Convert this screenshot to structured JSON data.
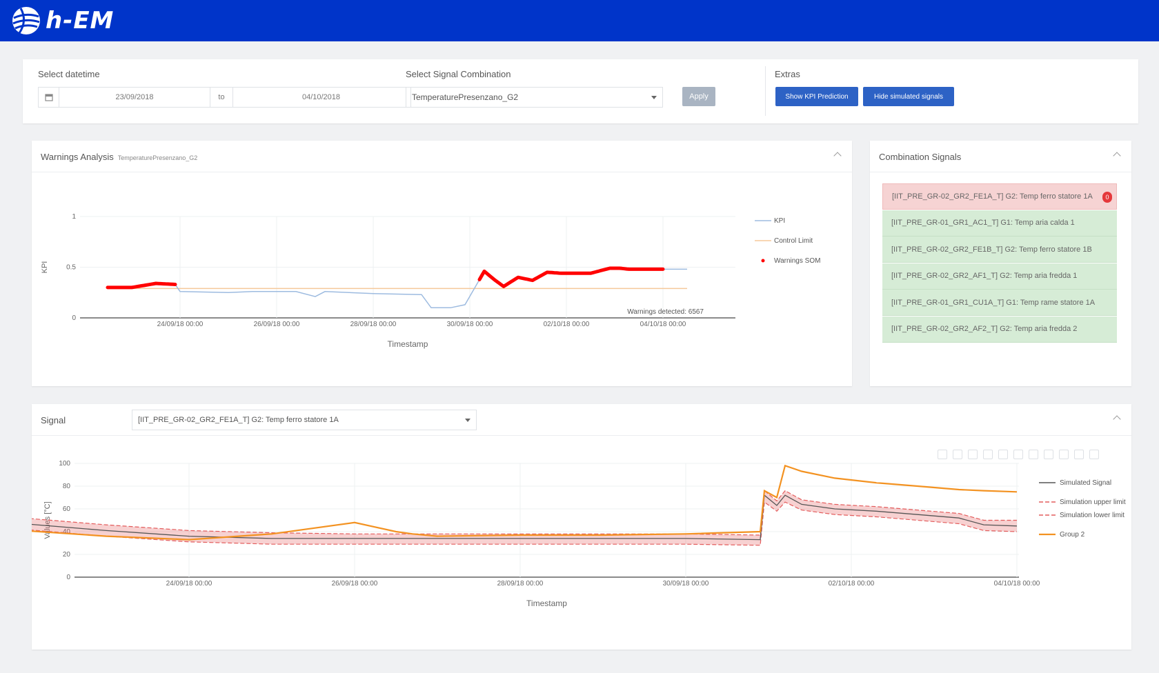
{
  "app": {
    "brand": "h-EM"
  },
  "filters": {
    "datetime_label": "Select datetime",
    "date_from": "23/09/2018",
    "date_to_label": "to",
    "date_to": "04/10/2018",
    "signal_combination_label": "Select Signal Combination",
    "signal_combination_value": "TemperaturePresenzano_G2",
    "apply_label": "Apply",
    "extras_label": "Extras",
    "show_kpi_label": "Show KPI Prediction",
    "hide_simulated_label": "Hide simulated signals"
  },
  "warnings_panel": {
    "title": "Warnings Analysis",
    "subtitle": "TemperaturePresenzano_G2"
  },
  "combination_panel": {
    "title": "Combination Signals",
    "signals": [
      {
        "label": "[IIT_PRE_GR-02_GR2_FE1A_T] G2: Temp ferro statore 1A",
        "status": "warning",
        "badge": "0"
      },
      {
        "label": "[IIT_PRE_GR-01_GR1_AC1_T] G1: Temp aria calda 1",
        "status": "ok"
      },
      {
        "label": "[IIT_PRE_GR-02_GR2_FE1B_T] G2: Temp ferro statore 1B",
        "status": "ok"
      },
      {
        "label": "[IIT_PRE_GR-02_GR2_AF1_T] G2: Temp aria fredda 1",
        "status": "ok"
      },
      {
        "label": "[IIT_PRE_GR-01_GR1_CU1A_T] G1: Temp rame statore 1A",
        "status": "ok"
      },
      {
        "label": "[IIT_PRE_GR-02_GR2_AF2_T] G2: Temp aria fredda 2",
        "status": "ok"
      }
    ]
  },
  "signal_panel": {
    "title": "Signal",
    "selected": "[IIT_PRE_GR-02_GR2_FE1A_T] G2: Temp ferro statore 1A"
  },
  "colors": {
    "brand": "#0034c9",
    "kpi": "#9dbbe0",
    "control_limit": "#f5c89a",
    "warnings": "#ff0000",
    "simulated": "#555555",
    "sim_limit": "#e35b5b",
    "group2": "#f39221"
  },
  "chart_data": [
    {
      "type": "line",
      "id": "warnings",
      "xlabel": "Timestamp",
      "ylabel": "KPI",
      "ylim": [
        0,
        1
      ],
      "yticks": [
        "0",
        "0.5",
        "1"
      ],
      "xticks": [
        "24/09/18 00:00",
        "26/09/18 00:00",
        "28/09/18 00:00",
        "30/09/18 00:00",
        "02/10/18 00:00",
        "04/10/18 00:00"
      ],
      "legend": [
        "KPI",
        "Control Limit",
        "Warnings SOM"
      ],
      "annotation": "Warnings detected: 6567",
      "x_days": [
        -0.5,
        0.0,
        0.5,
        0.9,
        1.0,
        2.0,
        2.5,
        2.8,
        3.2,
        3.4,
        3.8,
        4.0,
        5.0,
        6.0,
        6.2,
        6.6,
        6.9,
        7.3,
        7.5,
        7.7,
        8.0,
        8.3,
        8.6,
        8.9,
        9.3,
        9.5,
        9.9,
        10.1,
        10.3,
        11.0,
        11.5
      ],
      "series": [
        {
          "name": "KPI",
          "values": [
            0.3,
            0.3,
            0.34,
            0.33,
            0.26,
            0.25,
            0.26,
            0.26,
            0.26,
            0.26,
            0.21,
            0.26,
            0.24,
            0.23,
            0.1,
            0.1,
            0.13,
            0.46,
            0.38,
            0.31,
            0.4,
            0.37,
            0.45,
            0.44,
            0.44,
            0.44,
            0.49,
            0.49,
            0.48,
            0.48,
            0.48
          ]
        },
        {
          "name": "Control Limit",
          "values": [
            0.29,
            0.29,
            0.29,
            0.29,
            0.29,
            0.29,
            0.29,
            0.29,
            0.29,
            0.29,
            0.29,
            0.29,
            0.29,
            0.29,
            0.29,
            0.29,
            0.29,
            0.29,
            0.29,
            0.29,
            0.29,
            0.29,
            0.29,
            0.29,
            0.29,
            0.29,
            0.29,
            0.29,
            0.29,
            0.29,
            0.29
          ]
        }
      ],
      "warnings_x_days": [
        [
          -0.5,
          0.9
        ],
        [
          7.2,
          11.0
        ]
      ]
    },
    {
      "type": "line",
      "id": "signal",
      "xlabel": "Timestamp",
      "ylabel": "Values [°C]",
      "ylim": [
        0,
        100
      ],
      "yticks": [
        "0",
        "20",
        "40",
        "60",
        "80",
        "100"
      ],
      "xticks": [
        "24/09/18 00:00",
        "26/09/18 00:00",
        "28/09/18 00:00",
        "30/09/18 00:00",
        "02/10/18 00:00",
        "04/10/18 00:00"
      ],
      "legend": [
        "Simulated Signal",
        "Simulation upper limit",
        "Simulation lower limit",
        "Group 2"
      ],
      "x_days": [
        -1.0,
        0.0,
        1.0,
        2.0,
        3.0,
        3.5,
        3.7,
        4.0,
        5.0,
        6.0,
        7.0,
        7.9,
        7.95,
        8.1,
        8.2,
        8.4,
        8.8,
        9.3,
        9.8,
        10.3,
        10.6,
        11.0
      ],
      "series": [
        {
          "name": "Simulated Signal",
          "values": [
            47,
            41,
            36,
            34,
            34,
            34,
            34,
            34,
            34,
            34,
            34,
            33,
            72,
            63,
            72,
            64,
            60,
            58,
            55,
            52,
            46,
            45
          ]
        },
        {
          "name": "Simulation upper limit",
          "values": [
            52,
            46,
            41,
            39,
            38,
            38,
            38,
            38,
            38,
            38,
            38,
            37,
            76,
            67,
            76,
            68,
            64,
            62,
            59,
            56,
            50,
            50
          ]
        },
        {
          "name": "Simulation lower limit",
          "values": [
            42,
            36,
            31,
            29,
            29,
            29,
            29,
            29,
            29,
            29,
            29,
            28,
            66,
            58,
            66,
            59,
            55,
            53,
            50,
            47,
            41,
            40
          ]
        },
        {
          "name": "Group 2",
          "values": [
            41,
            36,
            33,
            38,
            48,
            40,
            38,
            36,
            37,
            37,
            38,
            40,
            76,
            70,
            98,
            93,
            87,
            83,
            80,
            77,
            76,
            75
          ]
        }
      ]
    }
  ]
}
